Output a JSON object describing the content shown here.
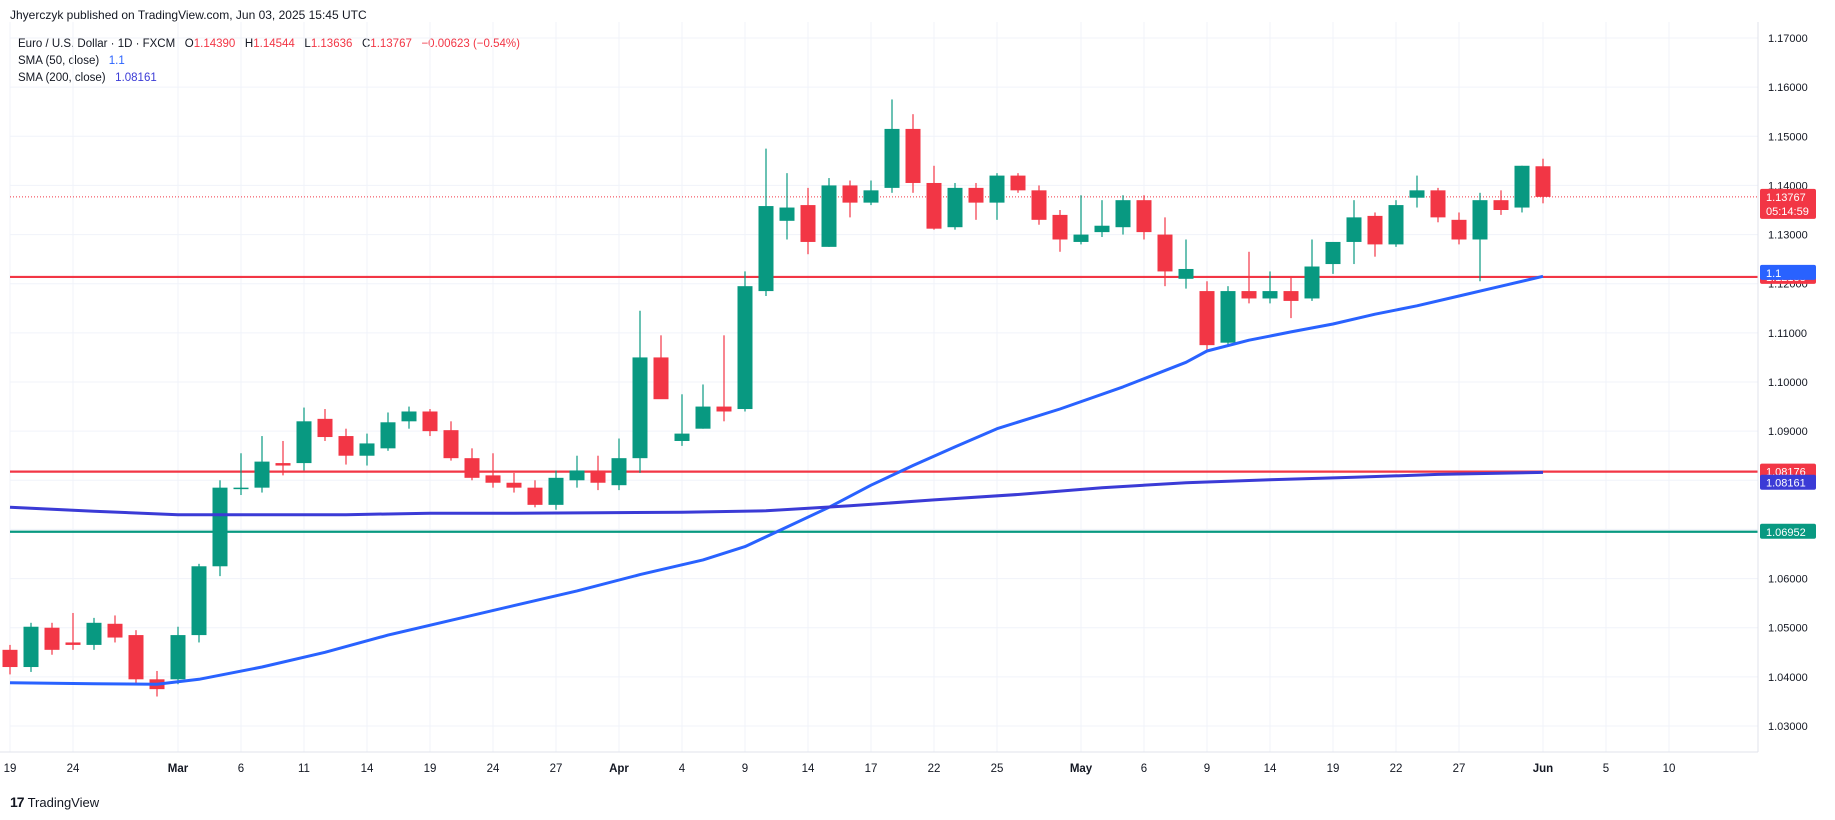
{
  "header": {
    "published": "Jhyerczyk published on TradingView.com, Jun 03, 2025 15:45 UTC"
  },
  "legend": {
    "symbol": "Euro / U.S. Dollar · 1D · FXCM",
    "o_label": "O",
    "o_value": "1.14390",
    "h_label": "H",
    "h_value": "1.14544",
    "l_label": "L",
    "l_value": "1.13636",
    "c_label": "C",
    "c_value": "1.13767",
    "change": "−0.00623 (−0.54%)",
    "sma50_label": "SMA (50, close)",
    "sma50_value": "1.1",
    "sma200_label": "SMA (200, close)",
    "sma200_value": "1.08161"
  },
  "footer": {
    "logo_mark": "17",
    "logo_text": "TradingView"
  },
  "colors": {
    "up": "#089981",
    "down": "#f23645",
    "sma50": "#2962ff",
    "sma200": "#3b3bd6",
    "resistance": "#f23645",
    "support": "#089981",
    "grid": "#f0f3fa"
  },
  "chart_data": {
    "type": "candlestick",
    "ylim": [
      1.025,
      1.172
    ],
    "y_ticks": [
      "1.17000",
      "1.16000",
      "1.15000",
      "1.14000",
      "1.13000",
      "1.12000",
      "1.11000",
      "1.10000",
      "1.09000",
      "1.08000",
      "1.07000",
      "1.06000",
      "1.05000",
      "1.04000",
      "1.03000"
    ],
    "x_ticks": [
      {
        "label": "19",
        "index": 0,
        "bold": false
      },
      {
        "label": "24",
        "index": 3,
        "bold": false
      },
      {
        "label": "Mar",
        "index": 8,
        "bold": true
      },
      {
        "label": "6",
        "index": 11,
        "bold": false
      },
      {
        "label": "11",
        "index": 14,
        "bold": false
      },
      {
        "label": "14",
        "index": 17,
        "bold": false
      },
      {
        "label": "19",
        "index": 20,
        "bold": false
      },
      {
        "label": "24",
        "index": 23,
        "bold": false
      },
      {
        "label": "27",
        "index": 26,
        "bold": false
      },
      {
        "label": "Apr",
        "index": 29,
        "bold": true
      },
      {
        "label": "4",
        "index": 32,
        "bold": false
      },
      {
        "label": "9",
        "index": 35,
        "bold": false
      },
      {
        "label": "14",
        "index": 38,
        "bold": false
      },
      {
        "label": "17",
        "index": 41,
        "bold": false
      },
      {
        "label": "22",
        "index": 44,
        "bold": false
      },
      {
        "label": "25",
        "index": 47,
        "bold": false
      },
      {
        "label": "May",
        "index": 51,
        "bold": true
      },
      {
        "label": "6",
        "index": 54,
        "bold": false
      },
      {
        "label": "9",
        "index": 57,
        "bold": false
      },
      {
        "label": "14",
        "index": 60,
        "bold": false
      },
      {
        "label": "19",
        "index": 63,
        "bold": false
      },
      {
        "label": "22",
        "index": 66,
        "bold": false
      },
      {
        "label": "27",
        "index": 69,
        "bold": false
      },
      {
        "label": "Jun",
        "index": 73,
        "bold": true
      },
      {
        "label": "5",
        "index": 76,
        "bold": false
      },
      {
        "label": "10",
        "index": 79,
        "bold": false
      }
    ],
    "candles": [
      {
        "o": 1.0455,
        "h": 1.0465,
        "l": 1.0405,
        "c": 1.042
      },
      {
        "o": 1.042,
        "h": 1.051,
        "l": 1.041,
        "c": 1.0502
      },
      {
        "o": 1.05,
        "h": 1.051,
        "l": 1.0445,
        "c": 1.0455
      },
      {
        "o": 1.047,
        "h": 1.053,
        "l": 1.0455,
        "c": 1.0465
      },
      {
        "o": 1.0465,
        "h": 1.052,
        "l": 1.0455,
        "c": 1.051
      },
      {
        "o": 1.0508,
        "h": 1.0525,
        "l": 1.047,
        "c": 1.048
      },
      {
        "o": 1.0485,
        "h": 1.0495,
        "l": 1.0385,
        "c": 1.0395
      },
      {
        "o": 1.0395,
        "h": 1.0412,
        "l": 1.036,
        "c": 1.0375
      },
      {
        "o": 1.0395,
        "h": 1.0502,
        "l": 1.0385,
        "c": 1.0485
      },
      {
        "o": 1.0485,
        "h": 1.063,
        "l": 1.047,
        "c": 1.0625
      },
      {
        "o": 1.0625,
        "h": 1.08,
        "l": 1.0605,
        "c": 1.0785
      },
      {
        "o": 1.0785,
        "h": 1.0855,
        "l": 1.077,
        "c": 1.0785
      },
      {
        "o": 1.0785,
        "h": 1.089,
        "l": 1.0775,
        "c": 1.0838
      },
      {
        "o": 1.0835,
        "h": 1.088,
        "l": 1.081,
        "c": 1.083
      },
      {
        "o": 1.0835,
        "h": 1.0948,
        "l": 1.082,
        "c": 1.092
      },
      {
        "o": 1.0925,
        "h": 1.0945,
        "l": 1.088,
        "c": 1.0888
      },
      {
        "o": 1.089,
        "h": 1.0905,
        "l": 1.0832,
        "c": 1.085
      },
      {
        "o": 1.085,
        "h": 1.0895,
        "l": 1.083,
        "c": 1.0875
      },
      {
        "o": 1.0865,
        "h": 1.0938,
        "l": 1.086,
        "c": 1.0918
      },
      {
        "o": 1.092,
        "h": 1.095,
        "l": 1.0905,
        "c": 1.094
      },
      {
        "o": 1.094,
        "h": 1.0945,
        "l": 1.089,
        "c": 1.09
      },
      {
        "o": 1.0902,
        "h": 1.092,
        "l": 1.084,
        "c": 1.0845
      },
      {
        "o": 1.0845,
        "h": 1.0865,
        "l": 1.08,
        "c": 1.0805
      },
      {
        "o": 1.081,
        "h": 1.0855,
        "l": 1.0785,
        "c": 1.0795
      },
      {
        "o": 1.0795,
        "h": 1.0815,
        "l": 1.0775,
        "c": 1.0785
      },
      {
        "o": 1.0785,
        "h": 1.08,
        "l": 1.0745,
        "c": 1.075
      },
      {
        "o": 1.075,
        "h": 1.082,
        "l": 1.074,
        "c": 1.0805
      },
      {
        "o": 1.08,
        "h": 1.085,
        "l": 1.0785,
        "c": 1.082
      },
      {
        "o": 1.082,
        "h": 1.085,
        "l": 1.078,
        "c": 1.0795
      },
      {
        "o": 1.079,
        "h": 1.0885,
        "l": 1.078,
        "c": 1.0845
      },
      {
        "o": 1.0845,
        "h": 1.1145,
        "l": 1.0815,
        "c": 1.105
      },
      {
        "o": 1.105,
        "h": 1.1095,
        "l": 1.097,
        "c": 1.0965
      },
      {
        "o": 1.088,
        "h": 1.0975,
        "l": 1.087,
        "c": 1.0895
      },
      {
        "o": 1.0905,
        "h": 1.0995,
        "l": 1.0905,
        "c": 1.095
      },
      {
        "o": 1.095,
        "h": 1.1095,
        "l": 1.092,
        "c": 1.094
      },
      {
        "o": 1.0945,
        "h": 1.1225,
        "l": 1.094,
        "c": 1.1195
      },
      {
        "o": 1.1185,
        "h": 1.1475,
        "l": 1.1175,
        "c": 1.1358
      },
      {
        "o": 1.1328,
        "h": 1.1425,
        "l": 1.129,
        "c": 1.1355
      },
      {
        "o": 1.136,
        "h": 1.1395,
        "l": 1.126,
        "c": 1.1285
      },
      {
        "o": 1.1275,
        "h": 1.1415,
        "l": 1.1275,
        "c": 1.14
      },
      {
        "o": 1.14,
        "h": 1.141,
        "l": 1.1335,
        "c": 1.1365
      },
      {
        "o": 1.1365,
        "h": 1.141,
        "l": 1.136,
        "c": 1.139
      },
      {
        "o": 1.1395,
        "h": 1.1575,
        "l": 1.1385,
        "c": 1.1515
      },
      {
        "o": 1.1515,
        "h": 1.1545,
        "l": 1.1385,
        "c": 1.1405
      },
      {
        "o": 1.1405,
        "h": 1.144,
        "l": 1.131,
        "c": 1.1312
      },
      {
        "o": 1.1315,
        "h": 1.1405,
        "l": 1.131,
        "c": 1.1395
      },
      {
        "o": 1.1395,
        "h": 1.1405,
        "l": 1.133,
        "c": 1.1365
      },
      {
        "o": 1.1365,
        "h": 1.1425,
        "l": 1.133,
        "c": 1.142
      },
      {
        "o": 1.142,
        "h": 1.1425,
        "l": 1.1385,
        "c": 1.139
      },
      {
        "o": 1.139,
        "h": 1.14,
        "l": 1.132,
        "c": 1.133
      },
      {
        "o": 1.134,
        "h": 1.135,
        "l": 1.1265,
        "c": 1.129
      },
      {
        "o": 1.1285,
        "h": 1.138,
        "l": 1.128,
        "c": 1.13
      },
      {
        "o": 1.1305,
        "h": 1.137,
        "l": 1.1295,
        "c": 1.1318
      },
      {
        "o": 1.1315,
        "h": 1.138,
        "l": 1.13,
        "c": 1.137
      },
      {
        "o": 1.137,
        "h": 1.138,
        "l": 1.129,
        "c": 1.1305
      },
      {
        "o": 1.13,
        "h": 1.1335,
        "l": 1.1195,
        "c": 1.1225
      },
      {
        "o": 1.121,
        "h": 1.129,
        "l": 1.119,
        "c": 1.123
      },
      {
        "o": 1.1185,
        "h": 1.1205,
        "l": 1.1065,
        "c": 1.1075
      },
      {
        "o": 1.108,
        "h": 1.1195,
        "l": 1.1075,
        "c": 1.1185
      },
      {
        "o": 1.1185,
        "h": 1.1265,
        "l": 1.116,
        "c": 1.117
      },
      {
        "o": 1.117,
        "h": 1.1225,
        "l": 1.116,
        "c": 1.1185
      },
      {
        "o": 1.1185,
        "h": 1.1215,
        "l": 1.113,
        "c": 1.1165
      },
      {
        "o": 1.117,
        "h": 1.129,
        "l": 1.1165,
        "c": 1.1235
      },
      {
        "o": 1.124,
        "h": 1.1282,
        "l": 1.122,
        "c": 1.1285
      },
      {
        "o": 1.1285,
        "h": 1.137,
        "l": 1.124,
        "c": 1.1335
      },
      {
        "o": 1.1338,
        "h": 1.1345,
        "l": 1.1255,
        "c": 1.128
      },
      {
        "o": 1.128,
        "h": 1.137,
        "l": 1.1275,
        "c": 1.136
      },
      {
        "o": 1.1375,
        "h": 1.142,
        "l": 1.1355,
        "c": 1.139
      },
      {
        "o": 1.139,
        "h": 1.1395,
        "l": 1.1325,
        "c": 1.1335
      },
      {
        "o": 1.133,
        "h": 1.1345,
        "l": 1.128,
        "c": 1.129
      },
      {
        "o": 1.129,
        "h": 1.1385,
        "l": 1.1205,
        "c": 1.137
      },
      {
        "o": 1.137,
        "h": 1.139,
        "l": 1.134,
        "c": 1.135
      },
      {
        "o": 1.1355,
        "h": 1.144,
        "l": 1.1345,
        "c": 1.144
      },
      {
        "o": 1.1439,
        "h": 1.14544,
        "l": 1.13636,
        "c": 1.13767
      }
    ],
    "sma50": [
      [
        0,
        1.0388
      ],
      [
        4,
        1.0386
      ],
      [
        7,
        1.0385
      ],
      [
        9,
        1.0395
      ],
      [
        12,
        1.042
      ],
      [
        15,
        1.045
      ],
      [
        18,
        1.0485
      ],
      [
        21,
        1.0515
      ],
      [
        24,
        1.0545
      ],
      [
        27,
        1.0575
      ],
      [
        30,
        1.0608
      ],
      [
        33,
        1.0638
      ],
      [
        35,
        1.0665
      ],
      [
        37,
        1.0705
      ],
      [
        39,
        1.0745
      ],
      [
        41,
        1.079
      ],
      [
        43,
        1.083
      ],
      [
        45,
        1.0868
      ],
      [
        47,
        1.0905
      ],
      [
        50,
        1.0945
      ],
      [
        53,
        1.099
      ],
      [
        56,
        1.104
      ],
      [
        57,
        1.1063
      ],
      [
        59,
        1.1085
      ],
      [
        61,
        1.1102
      ],
      [
        63,
        1.1118
      ],
      [
        65,
        1.1138
      ],
      [
        67,
        1.1155
      ],
      [
        69,
        1.1175
      ],
      [
        71,
        1.1195
      ],
      [
        73,
        1.1215
      ]
    ],
    "sma200": [
      [
        0,
        1.0745
      ],
      [
        4,
        1.0737
      ],
      [
        8,
        1.073
      ],
      [
        12,
        1.073
      ],
      [
        16,
        1.073
      ],
      [
        20,
        1.0733
      ],
      [
        24,
        1.0733
      ],
      [
        28,
        1.0734
      ],
      [
        32,
        1.0735
      ],
      [
        36,
        1.0738
      ],
      [
        40,
        1.0748
      ],
      [
        44,
        1.076
      ],
      [
        48,
        1.0771
      ],
      [
        52,
        1.0785
      ],
      [
        56,
        1.0795
      ],
      [
        60,
        1.0801
      ],
      [
        64,
        1.0806
      ],
      [
        68,
        1.0812
      ],
      [
        73,
        1.0816
      ]
    ],
    "hlines": [
      {
        "name": "resistance-line-upper",
        "value": 1.12138,
        "color": "#f23645",
        "label": "1.12138"
      },
      {
        "name": "resistance-line-lower",
        "value": 1.08176,
        "color": "#f23645",
        "label": "1.08176"
      },
      {
        "name": "support-line",
        "value": 1.06952,
        "color": "#089981",
        "label": "1.06952"
      }
    ],
    "price_tags": [
      {
        "name": "last-price-tag",
        "value": 1.13767,
        "color": "#f23645",
        "label": "1.13767",
        "sublabel": "05:14:59"
      },
      {
        "name": "sma50-tag",
        "value": 1.1222,
        "color": "#2962ff",
        "label": "1.1",
        "sublabel": ""
      },
      {
        "name": "sma200-tag",
        "value": 1.0795,
        "color": "#3b3bd6",
        "label": "1.08161",
        "sublabel": ""
      }
    ]
  }
}
